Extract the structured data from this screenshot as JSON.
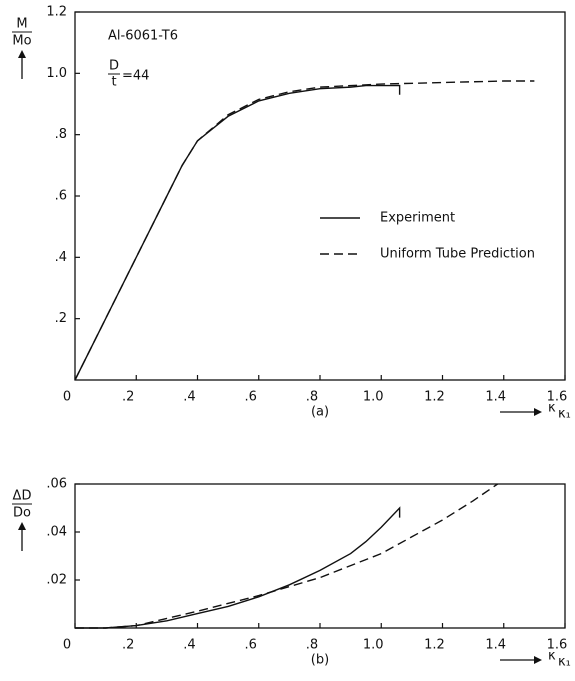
{
  "chart_data": [
    {
      "type": "line",
      "label": "(a)",
      "ylabel": {
        "numerator": "M",
        "denominator": "Mo"
      },
      "xlabel": {
        "numerator": "κ",
        "denominator": "κ₁"
      },
      "annotations": [
        "Al-6061-T6"
      ],
      "ratio": {
        "numerator": "D",
        "denominator": "t",
        "text": "=44"
      },
      "xlim": [
        0,
        1.6
      ],
      "ylim": [
        0,
        1.2
      ],
      "xticks": [
        0,
        {
          "value": 0.2,
          "label": ".2"
        },
        {
          "value": 0.4,
          "label": ".4"
        },
        {
          "value": 0.6,
          "label": ".6"
        },
        {
          "value": 0.8,
          "label": ".8"
        },
        {
          "value": 1.0,
          "label": "1.0"
        },
        1.2,
        1.4,
        1.6
      ],
      "yticks": [
        {
          "value": 0.2,
          "label": ".2"
        },
        {
          "value": 0.4,
          "label": ".4"
        },
        {
          "value": 0.6,
          "label": ".6"
        },
        {
          "value": 0.8,
          "label": ".8"
        },
        {
          "value": 1.0,
          "label": "1.0"
        },
        1.2
      ],
      "series": [
        {
          "name": "Experiment",
          "color": "#111",
          "dash": false,
          "x": [
            0,
            0.1,
            0.2,
            0.3,
            0.35,
            0.4,
            0.5,
            0.6,
            0.7,
            0.8,
            0.9,
            0.95,
            1.06,
            1.06
          ],
          "values": [
            0,
            0.2,
            0.4,
            0.6,
            0.7,
            0.78,
            0.86,
            0.91,
            0.935,
            0.95,
            0.955,
            0.96,
            0.96,
            0.93
          ]
        },
        {
          "name": "Uniform Tube Prediction",
          "color": "#111",
          "dash": true,
          "x": [
            0,
            0.1,
            0.2,
            0.3,
            0.35,
            0.4,
            0.5,
            0.6,
            0.7,
            0.8,
            1.0,
            1.2,
            1.4,
            1.5
          ],
          "values": [
            0,
            0.2,
            0.4,
            0.6,
            0.7,
            0.78,
            0.865,
            0.915,
            0.94,
            0.955,
            0.965,
            0.97,
            0.975,
            0.975
          ]
        }
      ]
    },
    {
      "type": "line",
      "label": "(b)",
      "ylabel": {
        "numerator": "ΔD",
        "denominator": "Do"
      },
      "xlabel": {
        "numerator": "κ",
        "denominator": "κ₁"
      },
      "xlim": [
        0,
        1.6
      ],
      "ylim": [
        0,
        0.06
      ],
      "xticks": [
        0,
        {
          "value": 0.2,
          "label": ".2"
        },
        {
          "value": 0.4,
          "label": ".4"
        },
        {
          "value": 0.6,
          "label": ".6"
        },
        {
          "value": 0.8,
          "label": ".8"
        },
        {
          "value": 1.0,
          "label": "1.0"
        },
        1.2,
        1.4,
        1.6
      ],
      "yticks": [
        {
          "value": 0.02,
          "label": ".02"
        },
        {
          "value": 0.04,
          "label": ".04"
        },
        {
          "value": 0.06,
          "label": ".06"
        }
      ],
      "series": [
        {
          "name": "Experiment",
          "color": "#111",
          "dash": false,
          "x": [
            0,
            0.1,
            0.2,
            0.3,
            0.4,
            0.5,
            0.6,
            0.7,
            0.8,
            0.9,
            0.95,
            1.0,
            1.06,
            1.06
          ],
          "values": [
            0,
            0,
            0.001,
            0.003,
            0.006,
            0.009,
            0.013,
            0.018,
            0.024,
            0.031,
            0.036,
            0.042,
            0.05,
            0.046
          ]
        },
        {
          "name": "Uniform Tube Prediction",
          "color": "#111",
          "dash": true,
          "x": [
            0,
            0.1,
            0.2,
            0.3,
            0.4,
            0.6,
            0.8,
            1.0,
            1.1,
            1.2,
            1.3,
            1.38
          ],
          "values": [
            0,
            0,
            0.001,
            0.004,
            0.007,
            0.0135,
            0.021,
            0.031,
            0.038,
            0.045,
            0.053,
            0.06
          ]
        }
      ]
    }
  ]
}
